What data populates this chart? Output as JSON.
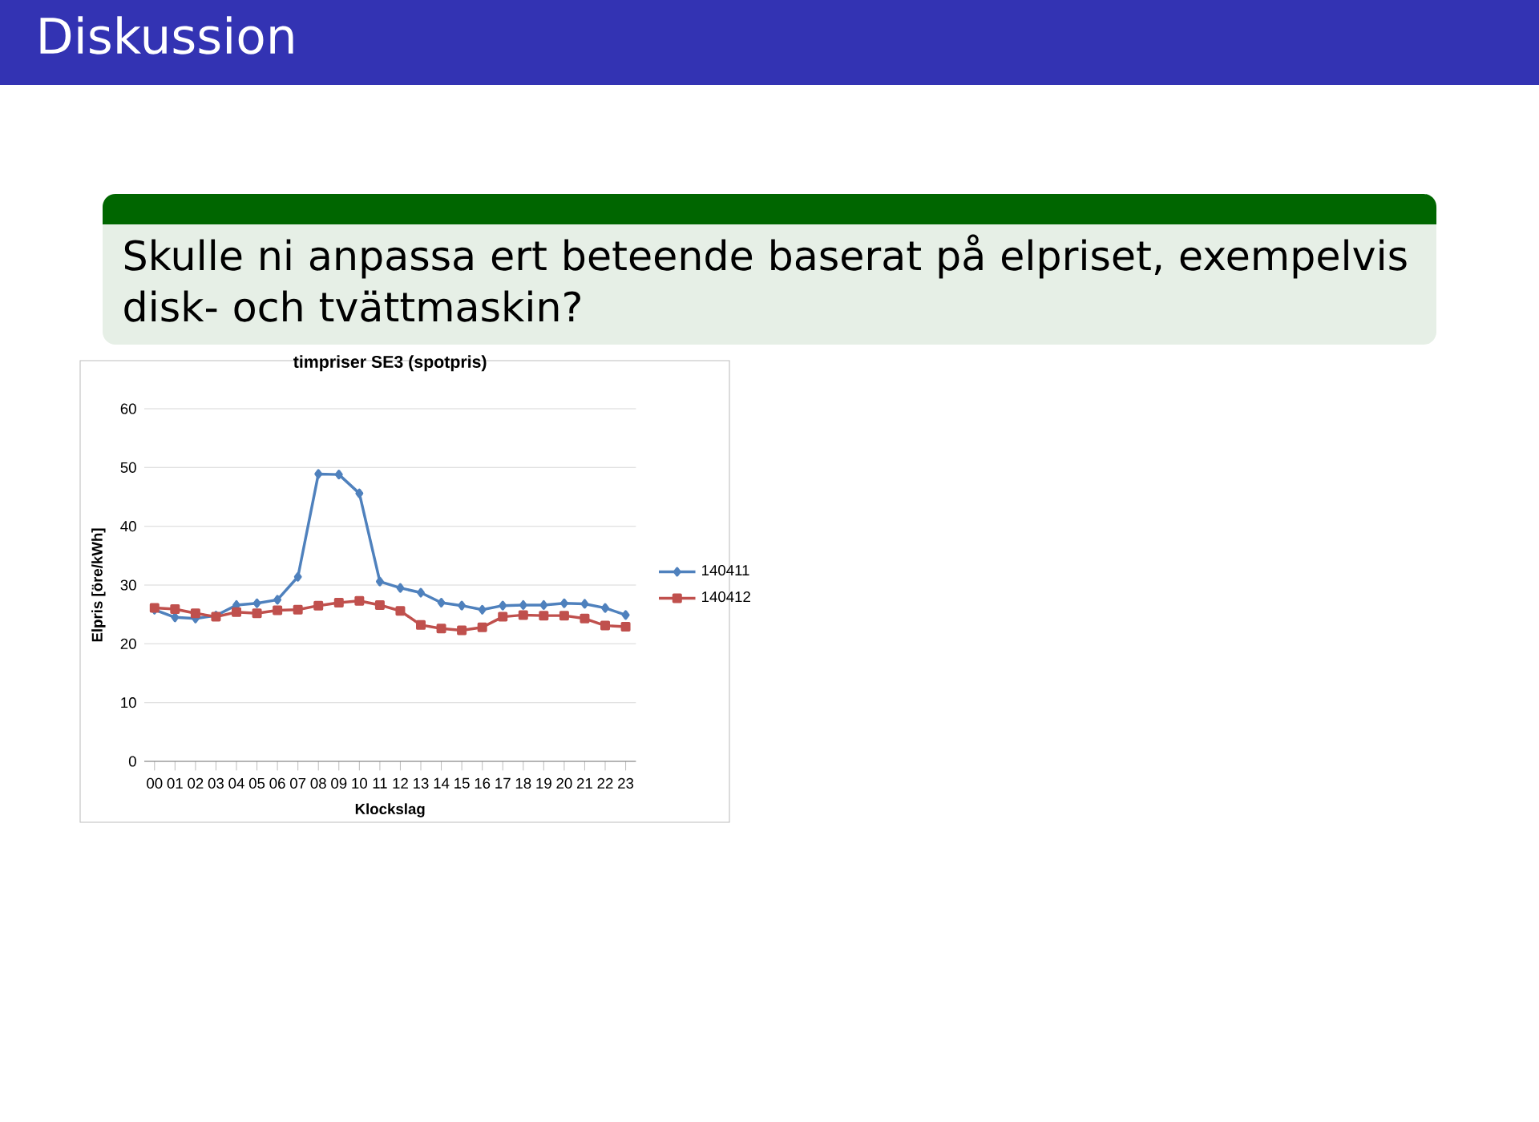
{
  "chart_data": {
    "type": "line",
    "title": "timpriser SE3 (spotpris)",
    "xlabel": "Klockslag",
    "ylabel": "Elpris [öre/kWh]",
    "categories": [
      "00",
      "01",
      "02",
      "03",
      "04",
      "05",
      "06",
      "07",
      "08",
      "09",
      "10",
      "11",
      "12",
      "13",
      "14",
      "15",
      "16",
      "17",
      "18",
      "19",
      "20",
      "21",
      "22",
      "23"
    ],
    "series": [
      {
        "name": "140411",
        "color": "#4f81bd",
        "marker": "diamond",
        "values": [
          25.8,
          24.5,
          24.3,
          24.8,
          26.6,
          26.9,
          27.5,
          31.4,
          48.9,
          48.8,
          45.6,
          30.6,
          29.5,
          28.7,
          27.0,
          26.5,
          25.8,
          26.5,
          26.6,
          26.6,
          26.9,
          26.8,
          26.1,
          24.9
        ]
      },
      {
        "name": "140412",
        "color": "#c0504d",
        "marker": "square",
        "values": [
          26.1,
          25.9,
          25.2,
          24.6,
          25.4,
          25.2,
          25.7,
          25.8,
          26.5,
          27.0,
          27.3,
          26.6,
          25.6,
          23.2,
          22.6,
          22.3,
          22.8,
          24.6,
          24.9,
          24.8,
          24.8,
          24.3,
          23.1,
          22.9
        ]
      }
    ],
    "ylim": [
      0,
      60
    ],
    "yticks": [
      0,
      10,
      20,
      30,
      40,
      50,
      60
    ],
    "grid": "y",
    "legend": "right",
    "annotations": [
      "Diskussion",
      "Skulle ni anpassa ert beteende baserat på elpriset, exempelvis disk- och tvättmaskin?"
    ]
  }
}
